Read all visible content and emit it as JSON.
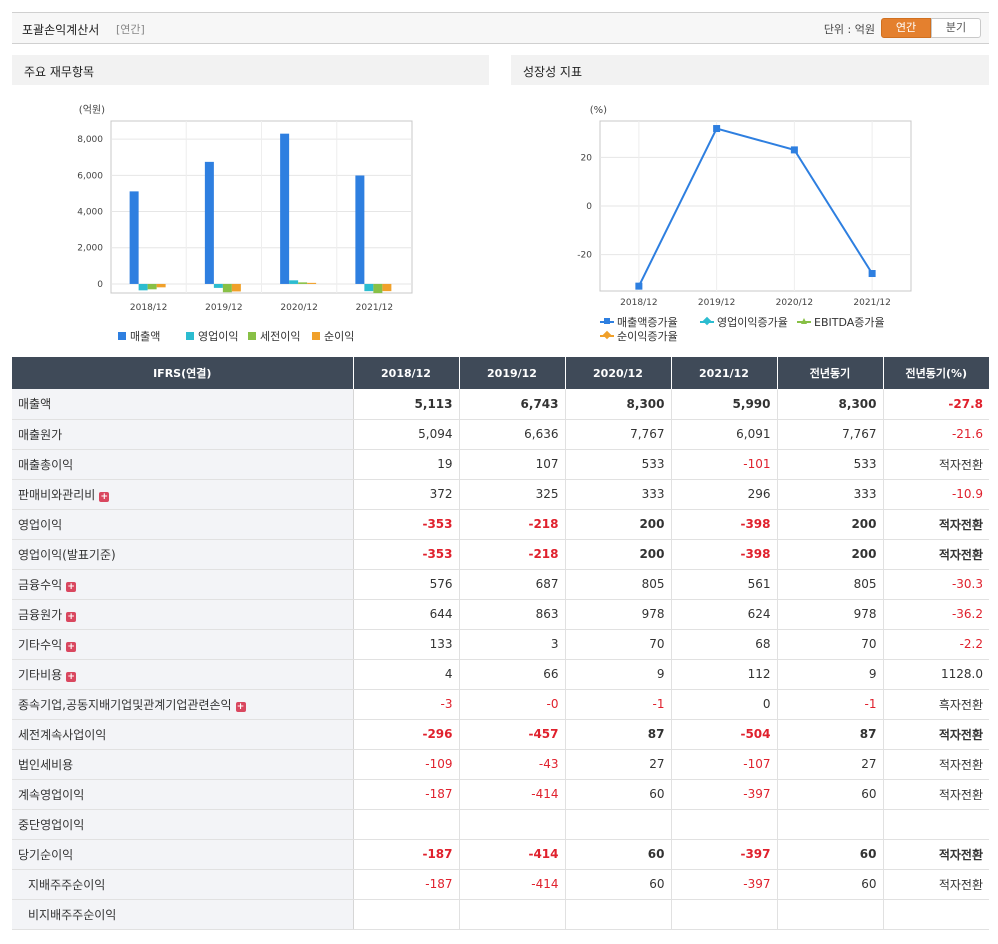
{
  "header": {
    "title": "포괄손익계산서",
    "period_tag": "[연간]",
    "unit_label": "단위 : 억원",
    "tab_annual": "연간",
    "tab_quarter": "분기"
  },
  "colors": {
    "revenue": "#2e7fe0",
    "operating_profit": "#2cbcd0",
    "pretax_profit": "#88c046",
    "net_profit": "#f0a02a",
    "line": "#2e7fe0",
    "negative": "#e0212d",
    "header_bg": "#3f4a58",
    "accent": "#e4802e"
  },
  "panels": {
    "left_title": "주요 재무항목",
    "right_title": "성장성 지표"
  },
  "chart_data": [
    {
      "type": "bar",
      "ylabel": "(억원)",
      "categories": [
        "2018/12",
        "2019/12",
        "2020/12",
        "2021/12"
      ],
      "ylim": [
        -500,
        9000
      ],
      "yticks": [
        "8,000",
        "6,000",
        "4,000",
        "2,000",
        "0"
      ],
      "grid": true,
      "legend_position": "bottom",
      "series": [
        {
          "name": "매출액",
          "values": [
            5113,
            6743,
            8300,
            5990
          ]
        },
        {
          "name": "영업이익",
          "values": [
            -353,
            -218,
            200,
            -398
          ]
        },
        {
          "name": "세전이익",
          "values": [
            -296,
            -457,
            87,
            -504
          ]
        },
        {
          "name": "순이익",
          "values": [
            -187,
            -414,
            60,
            -397
          ]
        }
      ]
    },
    {
      "type": "line",
      "ylabel": "(%)",
      "categories": [
        "2018/12",
        "2019/12",
        "2020/12",
        "2021/12"
      ],
      "ylim": [
        -35,
        35
      ],
      "yticks": [
        "20",
        "0",
        "-20"
      ],
      "grid": true,
      "legend_position": "bottom",
      "series": [
        {
          "name": "매출액증가율",
          "values": [
            -33,
            31.9,
            23.1,
            -27.8
          ]
        },
        {
          "name": "영업이익증가율",
          "values": [
            null,
            null,
            null,
            null
          ]
        },
        {
          "name": "EBITDA증가율",
          "values": [
            null,
            null,
            null,
            null
          ]
        },
        {
          "name": "순이익증가율",
          "values": [
            null,
            null,
            null,
            null
          ]
        }
      ]
    }
  ],
  "table": {
    "columns": [
      "IFRS(연결)",
      "2018/12",
      "2019/12",
      "2020/12",
      "2021/12",
      "전년동기",
      "전년동기(%)"
    ],
    "rows": [
      {
        "label": "매출액",
        "values": [
          "5,113",
          "6,743",
          "8,300",
          "5,990",
          "8,300",
          "-27.8"
        ],
        "bold": true
      },
      {
        "label": "매출원가",
        "values": [
          "5,094",
          "6,636",
          "7,767",
          "6,091",
          "7,767",
          "-21.6"
        ]
      },
      {
        "label": "매출총이익",
        "values": [
          "19",
          "107",
          "533",
          "-101",
          "533",
          "적자전환"
        ]
      },
      {
        "label": "판매비와관리비",
        "values": [
          "372",
          "325",
          "333",
          "296",
          "333",
          "-10.9"
        ],
        "expand": true
      },
      {
        "label": "영업이익",
        "values": [
          "-353",
          "-218",
          "200",
          "-398",
          "200",
          "적자전환"
        ],
        "bold": true
      },
      {
        "label": "영업이익(발표기준)",
        "values": [
          "-353",
          "-218",
          "200",
          "-398",
          "200",
          "적자전환"
        ],
        "bold": true
      },
      {
        "label": "금융수익",
        "values": [
          "576",
          "687",
          "805",
          "561",
          "805",
          "-30.3"
        ],
        "expand": true
      },
      {
        "label": "금융원가",
        "values": [
          "644",
          "863",
          "978",
          "624",
          "978",
          "-36.2"
        ],
        "expand": true
      },
      {
        "label": "기타수익",
        "values": [
          "133",
          "3",
          "70",
          "68",
          "70",
          "-2.2"
        ],
        "expand": true
      },
      {
        "label": "기타비용",
        "values": [
          "4",
          "66",
          "9",
          "112",
          "9",
          "1128.0"
        ],
        "expand": true
      },
      {
        "label": "종속기업,공동지배기업및관계기업관련손익",
        "values": [
          "-3",
          "-0",
          "-1",
          "0",
          "-1",
          "흑자전환"
        ],
        "expand": true
      },
      {
        "label": "세전계속사업이익",
        "values": [
          "-296",
          "-457",
          "87",
          "-504",
          "87",
          "적자전환"
        ],
        "bold": true
      },
      {
        "label": "법인세비용",
        "values": [
          "-109",
          "-43",
          "27",
          "-107",
          "27",
          "적자전환"
        ]
      },
      {
        "label": "계속영업이익",
        "values": [
          "-187",
          "-414",
          "60",
          "-397",
          "60",
          "적자전환"
        ]
      },
      {
        "label": "중단영업이익",
        "values": [
          "",
          "",
          "",
          "",
          "",
          ""
        ]
      },
      {
        "label": "당기순이익",
        "values": [
          "-187",
          "-414",
          "60",
          "-397",
          "60",
          "적자전환"
        ],
        "bold": true
      },
      {
        "label": "지배주주순이익",
        "values": [
          "-187",
          "-414",
          "60",
          "-397",
          "60",
          "적자전환"
        ],
        "indent": true
      },
      {
        "label": "비지배주주순이익",
        "values": [
          "",
          "",
          "",
          "",
          "",
          ""
        ],
        "indent": true
      }
    ]
  }
}
